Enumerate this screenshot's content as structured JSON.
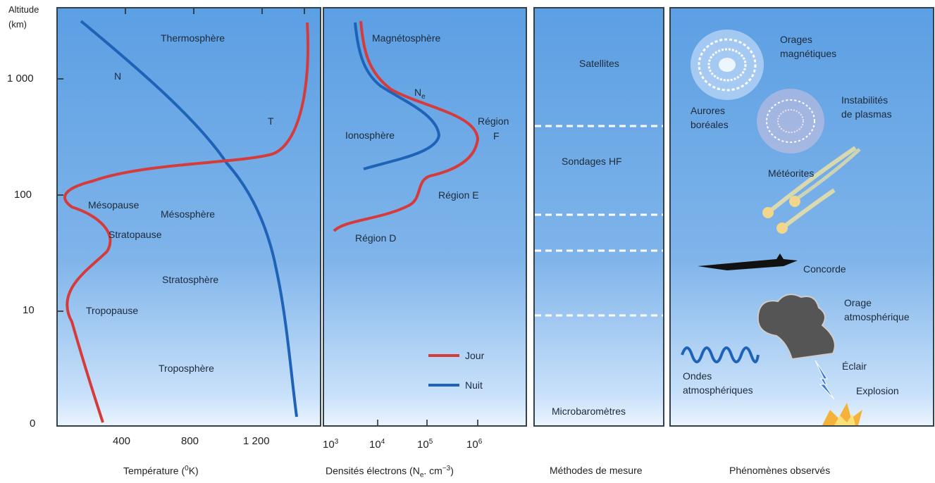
{
  "y_axis": {
    "title_line1": "Altitude",
    "title_line2": "(km)",
    "ticks": [
      "1 000",
      "100",
      "10",
      "0"
    ]
  },
  "panel1": {
    "x_ticks": [
      "400",
      "800",
      "1 200"
    ],
    "xlabel": "Température (",
    "xlabel_sup": "0",
    "xlabel_end": "K)",
    "labels": {
      "thermosphere": "Thermosphère",
      "n": "N",
      "t": "T",
      "mesopause": "Mésopause",
      "mesosphere": "Mésosphère",
      "stratopause": "Stratopause",
      "stratosphere": "Stratosphère",
      "tropopause": "Tropopause",
      "troposphere": "Troposphère"
    },
    "colors": {
      "temperature": "#d63b3b",
      "density": "#1e63b8"
    }
  },
  "panel2": {
    "x_ticks": [
      {
        "base": "10",
        "exp": "3"
      },
      {
        "base": "10",
        "exp": "4"
      },
      {
        "base": "10",
        "exp": "5"
      },
      {
        "base": "10",
        "exp": "6"
      }
    ],
    "xlabel_start": "Densités électrons (N",
    "xlabel_sub": "e",
    "xlabel_mid": ". cm",
    "xlabel_sup": "−3",
    "xlabel_end": ")",
    "labels": {
      "magnetosphere": "Magnétosphère",
      "ne": "N",
      "ne_sub": "e",
      "ionosphere": "Ionosphère",
      "region_f_1": "Région",
      "region_f_2": "F",
      "region_e": "Région E",
      "region_d": "Région D"
    },
    "legend": [
      {
        "name": "Jour",
        "color": "#d63b3b"
      },
      {
        "name": "Nuit",
        "color": "#1e63b8"
      }
    ]
  },
  "panel3": {
    "xlabel": "Méthodes de mesure",
    "labels": {
      "satellites": "Satellites",
      "sondages": "Sondages HF",
      "microbarometres": "Microbaromètres"
    }
  },
  "panel4": {
    "xlabel": "Phénomènes observés",
    "labels": {
      "orages_1": "Orages",
      "orages_2": "magnétiques",
      "instab_1": "Instabilités",
      "instab_2": "de plasmas",
      "aurores_1": "Aurores",
      "aurores_2": "boréales",
      "meteorites": "Météorites",
      "concorde": "Concorde",
      "orage_1": "Orage",
      "orage_2": "atmosphérique",
      "eclair": "Éclair",
      "explosion": "Explosion",
      "ondes_1": "Ondes",
      "ondes_2": "atmosphériques"
    }
  }
}
